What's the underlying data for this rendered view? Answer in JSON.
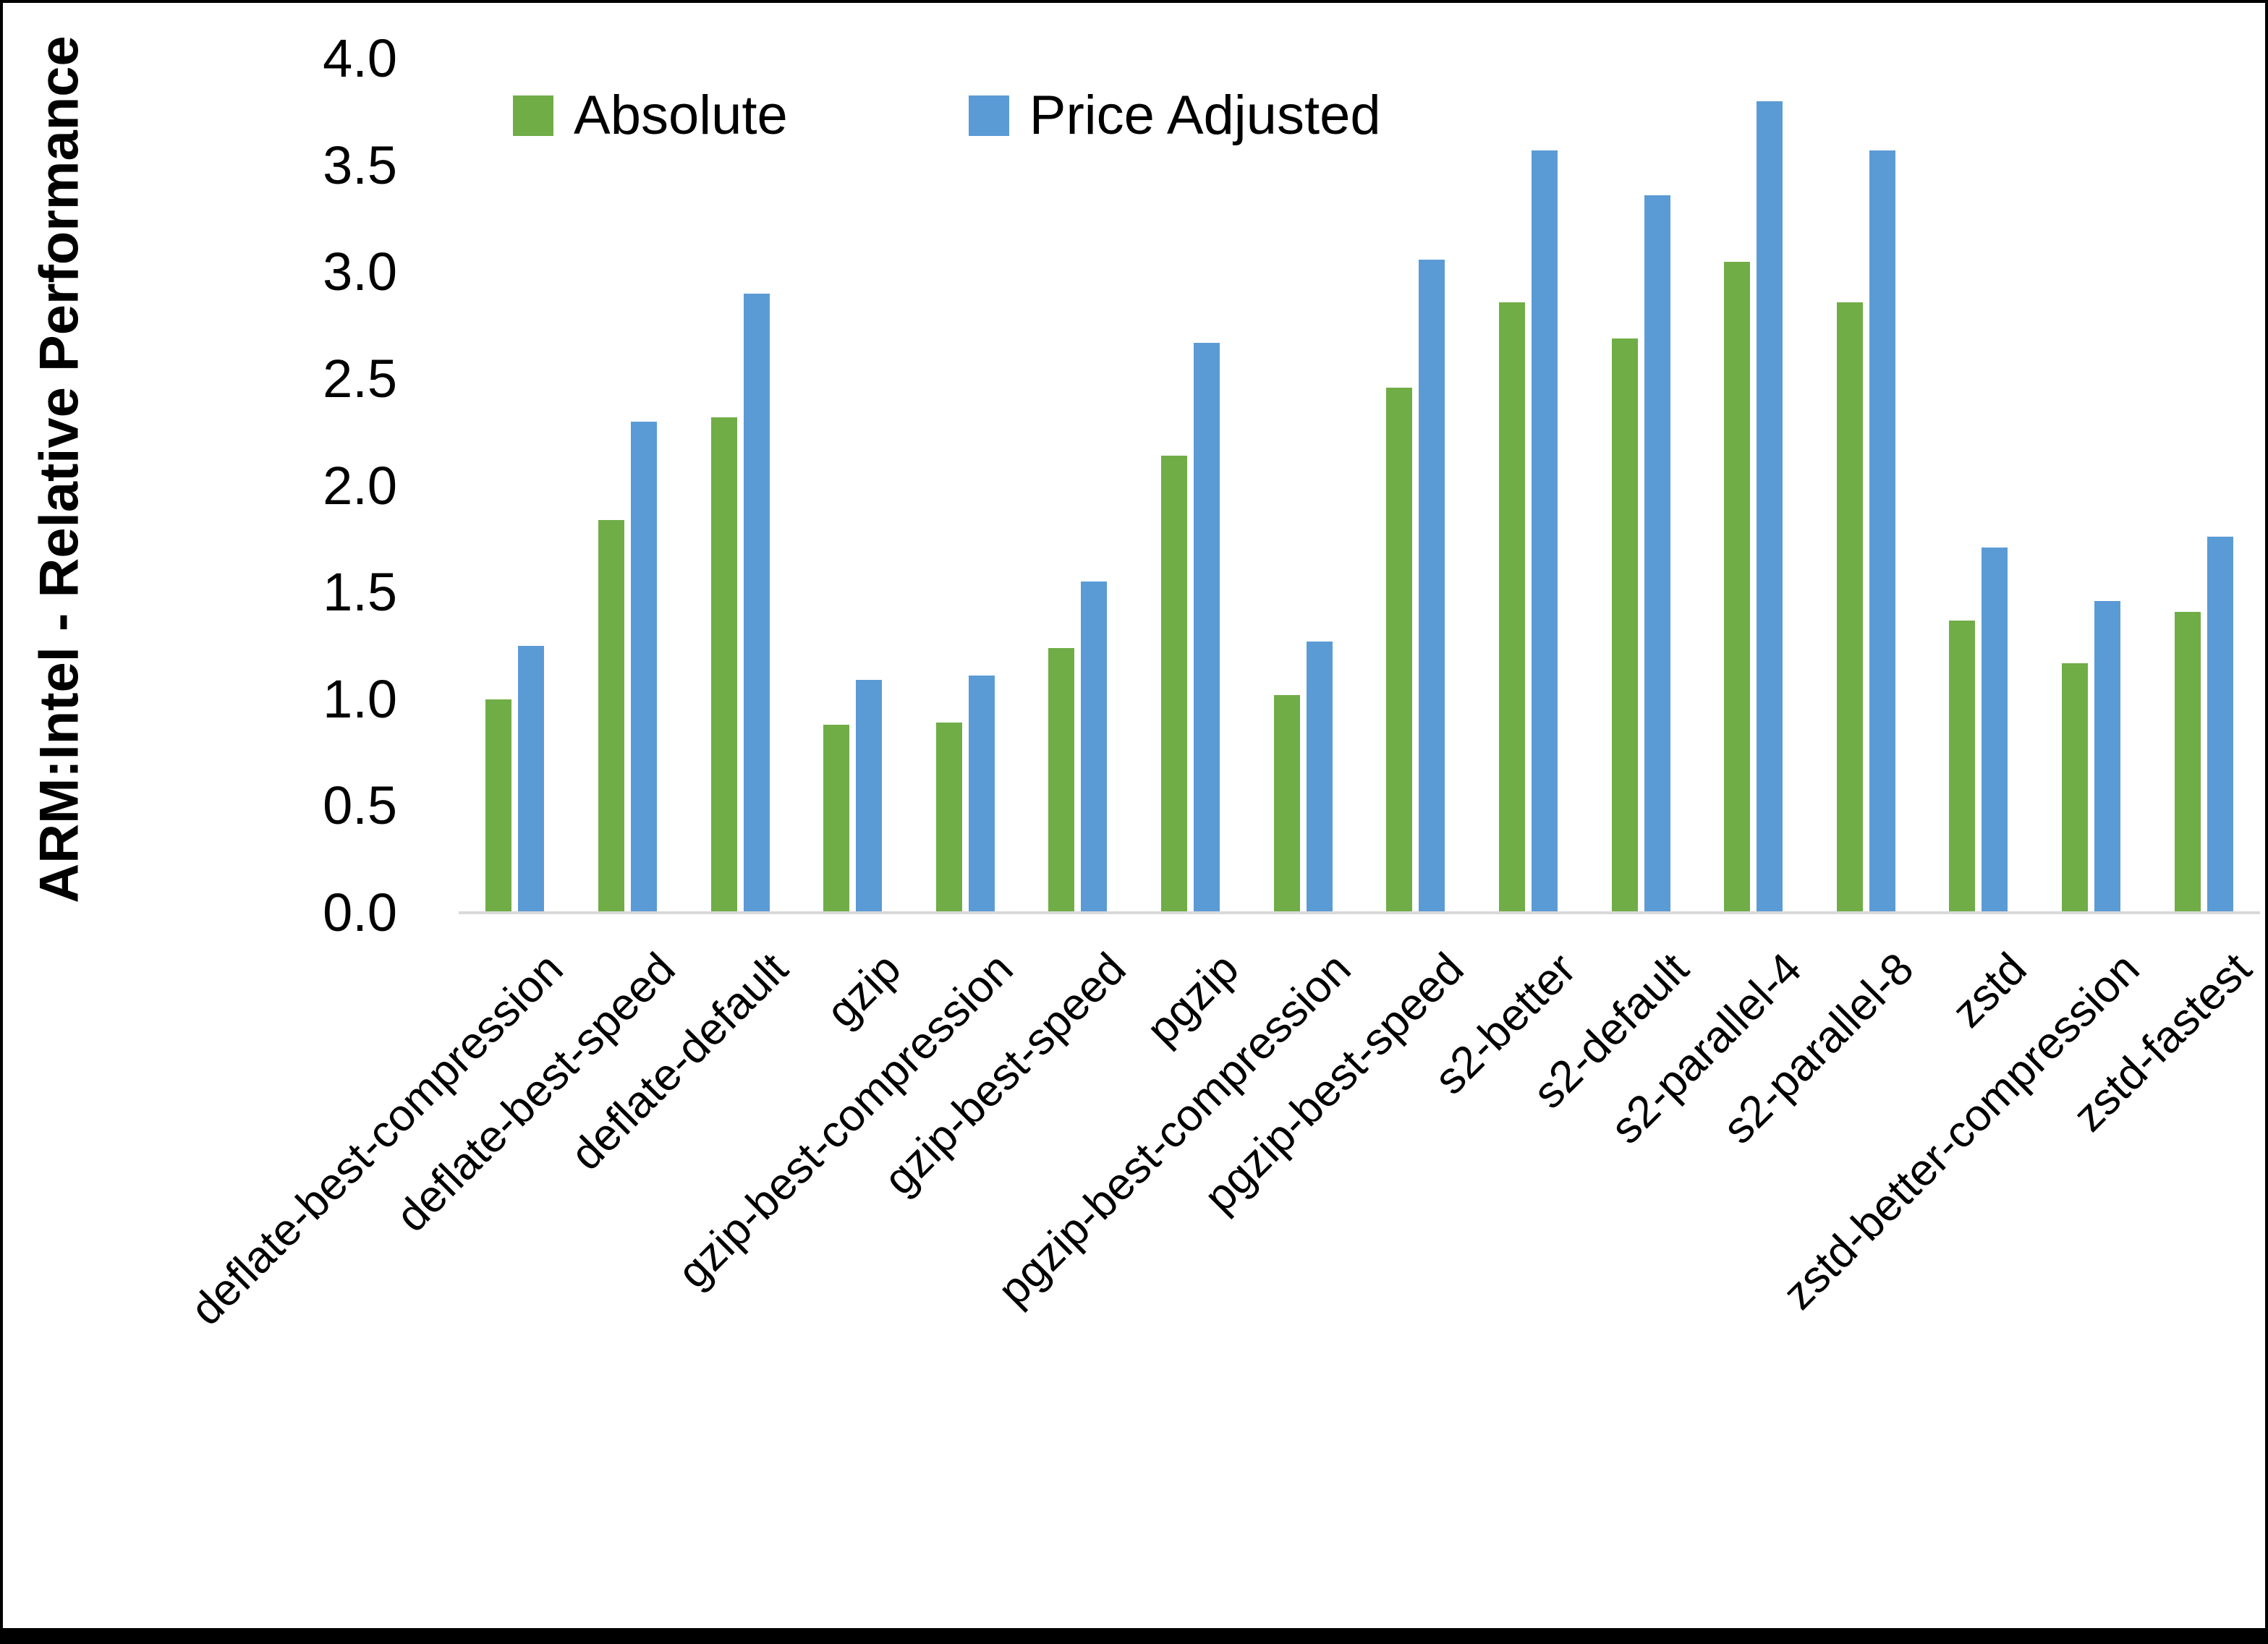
{
  "chart_data": {
    "type": "bar",
    "title": "",
    "xlabel": "",
    "ylabel": "ARM:Intel - Relative Performance",
    "ylim": [
      0.0,
      4.0
    ],
    "ytick_labels": [
      "0.0",
      "0.5",
      "1.0",
      "1.5",
      "2.0",
      "2.5",
      "3.0",
      "3.5",
      "4.0"
    ],
    "grid": false,
    "legend_position": "top-center",
    "categories": [
      "deflate-best-compression",
      "deflate-best-speed",
      "deflate-default",
      "gzip",
      "gzip-best-compression",
      "gzip-best-speed",
      "pgzip",
      "pgzip-best-compression",
      "pgzip-best-speed",
      "s2-better",
      "s2-default",
      "s2-parallel-4",
      "s2-parallel-8",
      "zstd",
      "zstd-better-compression",
      "zstd-fastest"
    ],
    "series": [
      {
        "name": "Absolute",
        "color": "#70AD47",
        "values": [
          1.0,
          1.84,
          2.32,
          0.88,
          0.89,
          1.24,
          2.14,
          1.02,
          2.46,
          2.86,
          2.69,
          3.05,
          2.86,
          1.37,
          1.17,
          1.41
        ]
      },
      {
        "name": "Price Adjusted",
        "color": "#5B9BD5",
        "values": [
          1.25,
          2.3,
          2.9,
          1.09,
          1.11,
          1.55,
          2.67,
          1.27,
          3.06,
          3.57,
          3.36,
          3.8,
          3.57,
          1.71,
          1.46,
          1.76
        ]
      }
    ]
  },
  "legend": {
    "items": [
      {
        "label": "Absolute",
        "color": "#70AD47"
      },
      {
        "label": "Price Adjusted",
        "color": "#5B9BD5"
      }
    ]
  },
  "colors": {
    "axis_line": "#d9d9d9",
    "text": "#000000",
    "background": "#ffffff"
  }
}
